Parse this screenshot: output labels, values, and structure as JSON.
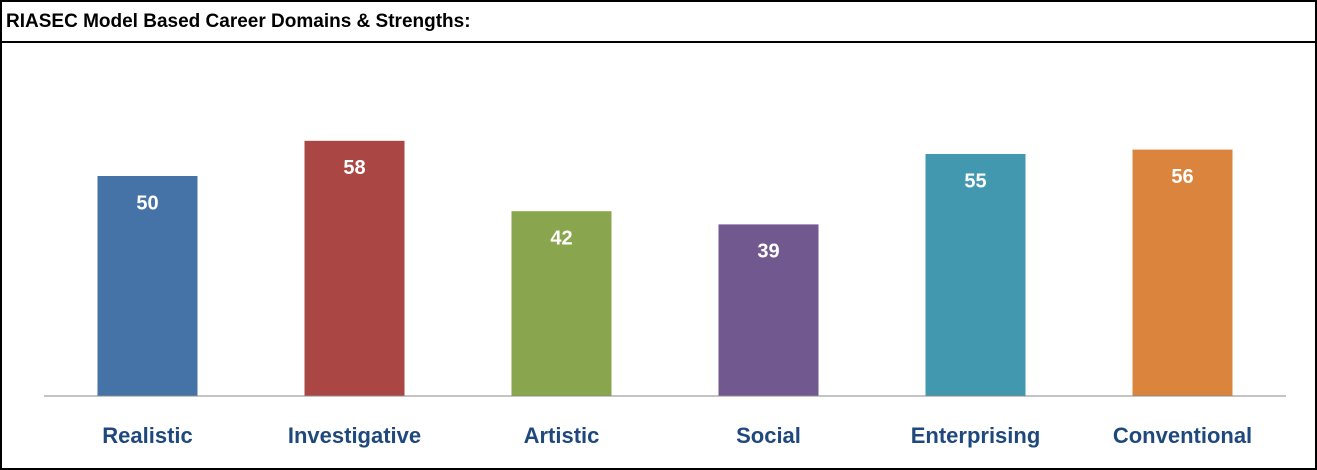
{
  "chart_data": {
    "type": "bar",
    "title": "RIASEC Model Based Career Domains & Strengths:",
    "categories": [
      "Realistic",
      "Investigative",
      "Artistic",
      "Social",
      "Enterprising",
      "Conventional"
    ],
    "values": [
      50,
      58,
      42,
      39,
      55,
      56
    ],
    "colors": [
      "#4572a7",
      "#aa4643",
      "#89a54e",
      "#71588f",
      "#4198af",
      "#db843d"
    ],
    "ylim": [
      0,
      70
    ]
  }
}
